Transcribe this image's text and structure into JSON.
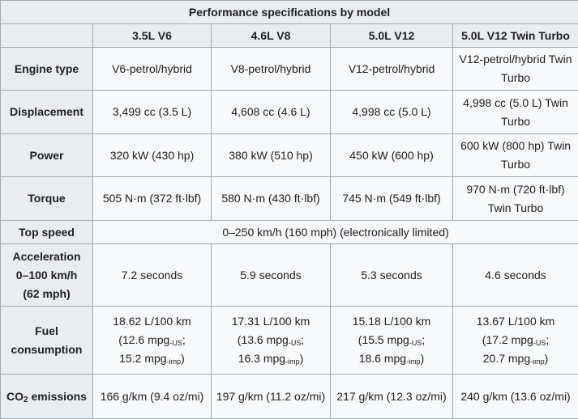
{
  "caption": "Performance specifications by model",
  "models": [
    "3.5L V6",
    "4.6L V8",
    "5.0L V12",
    "5.0L V12 Twin Turbo"
  ],
  "rows": {
    "engine_type": {
      "label": "Engine type",
      "values": [
        "V6-petrol/hybrid",
        "V8-petrol/hybrid",
        "V12-petrol/hybrid",
        "V12-petrol/hybrid Twin Turbo"
      ]
    },
    "displacement": {
      "label": "Displacement",
      "values": [
        "3,499 cc (3.5 L)",
        "4,608 cc (4.6 L)",
        "4,998 cc (5.0 L)",
        "4,998 cc (5.0 L) Twin Turbo"
      ]
    },
    "power": {
      "label": "Power",
      "values": [
        "320 kW (430 hp)",
        "380 kW (510 hp)",
        "450 kW (600 hp)",
        "600 kW (800 hp) Twin Turbo"
      ]
    },
    "torque": {
      "label": "Torque",
      "values": [
        "505 N·m (372 ft·lbf)",
        "580 N·m (430 ft·lbf)",
        "745 N·m (549 ft·lbf)",
        "970 N·m (720 ft·lbf) Twin Turbo"
      ]
    },
    "top_speed": {
      "label": "Top speed",
      "value": "0–250 km/h (160 mph) (electronically limited)"
    },
    "acceleration": {
      "label_line1": "Acceleration",
      "label_line2": "0–100 km/h",
      "label_line3": "(62 mph)",
      "values": [
        "7.2 seconds",
        "5.9 seconds",
        "5.3 seconds",
        "4.6 seconds"
      ]
    },
    "fuel": {
      "label_line1": "Fuel",
      "label_line2": "consumption",
      "sub_us": "-US",
      "sub_imp": "-imp",
      "mpg_unit": "mpg",
      "values": [
        {
          "l100": "18.62 L/100 km",
          "us_pre": "(12.6",
          "us_post": ";",
          "imp_pre": "15.2",
          "imp_post": ")"
        },
        {
          "l100": "17.31 L/100 km",
          "us_pre": "(13.6",
          "us_post": ";",
          "imp_pre": "16.3",
          "imp_post": ")"
        },
        {
          "l100": "15.18 L/100 km",
          "us_pre": "(15.5",
          "us_post": ";",
          "imp_pre": "18.6",
          "imp_post": ")"
        },
        {
          "l100": "13.67 L/100 km",
          "us_pre": "(17.2",
          "us_post": ";",
          "imp_pre": "20.7",
          "imp_post": ")"
        }
      ]
    },
    "co2": {
      "label_pre": "CO",
      "label_sub": "2",
      "label_post": " emissions",
      "values": [
        "166 g/km (9.4 oz/mi)",
        "197 g/km (11.2 oz/mi)",
        "217 g/km (12.3 oz/mi)",
        "240 g/km (13.6 oz/mi)"
      ]
    }
  }
}
